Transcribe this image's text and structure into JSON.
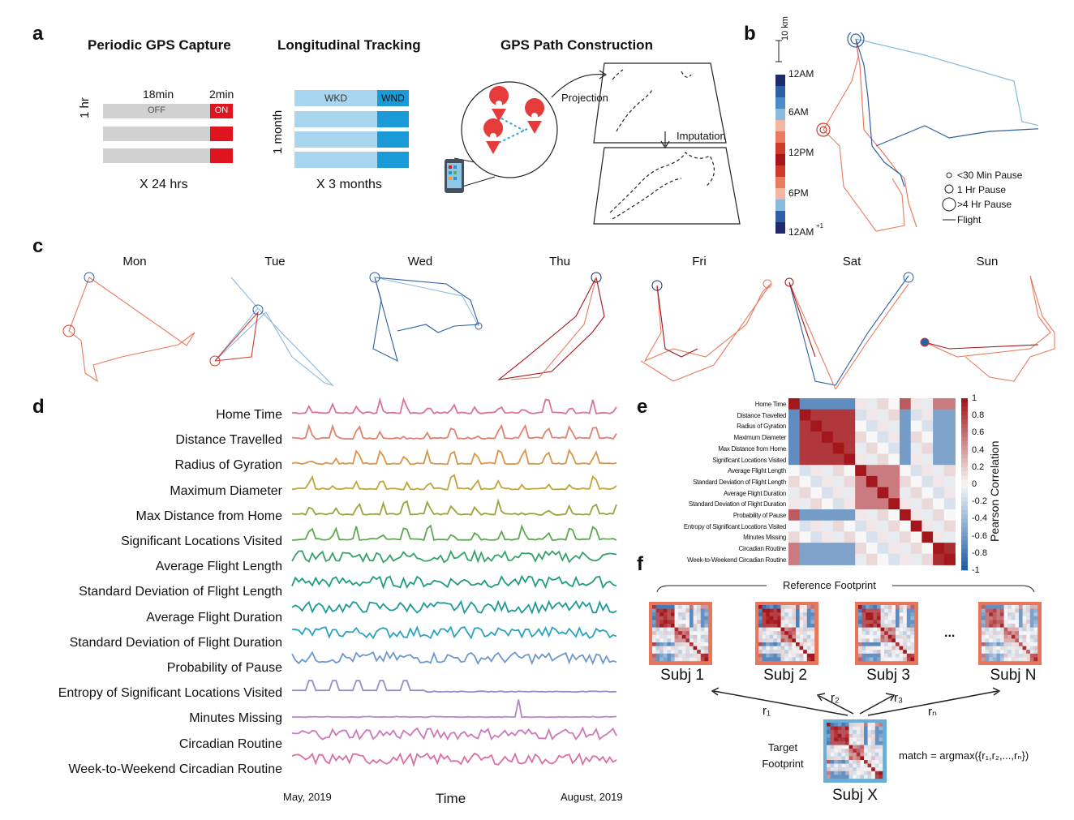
{
  "panel_letters": {
    "a": "a",
    "b": "b",
    "c": "c",
    "d": "d",
    "e": "e",
    "f": "f"
  },
  "panel_a": {
    "capture": {
      "title": "Periodic GPS Capture",
      "off_minutes": "18min",
      "on_minutes": "2min",
      "off_label": "OFF",
      "on_label": "ON",
      "period": "1 hr",
      "repeat": "X 24 hrs",
      "colors": {
        "off": "#d1d1d1",
        "on": "#e0141f"
      }
    },
    "tracking": {
      "title": "Longitudinal Tracking",
      "weekday_label": "WKD",
      "weekend_label": "WND",
      "period": "1 month",
      "repeat": "X 3 months",
      "colors": {
        "weekday": "#a8d6ee",
        "weekend": "#1a9ad6"
      }
    },
    "path": {
      "title": "GPS Path Construction",
      "projection_label": "Projection",
      "imputation_label": "Imputation",
      "icons": [
        "smartphone-icon",
        "location-pin-icon"
      ]
    }
  },
  "panel_b": {
    "scale_label": "10 km",
    "time_ticks": [
      "12AM",
      "6AM",
      "12PM",
      "6PM",
      "12AM"
    ],
    "next_day_mark": "+1",
    "legend": [
      "<30 Min Pause",
      "1 Hr Pause",
      ">4 Hr Pause",
      "Flight"
    ]
  },
  "panel_c": {
    "days": [
      "Mon",
      "Tue",
      "Wed",
      "Thu",
      "Fri",
      "Sat",
      "Sun"
    ]
  },
  "panel_d": {
    "features": [
      {
        "name": "Home Time",
        "color": "#d9739a"
      },
      {
        "name": "Distance Travelled",
        "color": "#e0826c"
      },
      {
        "name": "Radius of Gyration",
        "color": "#d7964a"
      },
      {
        "name": "Maximum Diameter",
        "color": "#bfa53a"
      },
      {
        "name": "Max Distance from Home",
        "color": "#9aa33c"
      },
      {
        "name": "Significant Locations Visited",
        "color": "#5ea950"
      },
      {
        "name": "Average Flight Length",
        "color": "#34a26a"
      },
      {
        "name": "Standard Deviation of Flight Length",
        "color": "#1f9c80"
      },
      {
        "name": "Average Flight Duration",
        "color": "#1f9a9a"
      },
      {
        "name": "Standard  Deviation of Flight Duration",
        "color": "#2aa2c0"
      },
      {
        "name": "Probability of Pause",
        "color": "#6c98cc"
      },
      {
        "name": "Entropy of Significant Locations Visited",
        "color": "#9a8ccc"
      },
      {
        "name": "Minutes Missing",
        "color": "#b587c8"
      },
      {
        "name": "Circadian Routine",
        "color": "#cc78b8"
      },
      {
        "name": "Week-to-Weekend Circadian Routine",
        "color": "#d96fa6"
      }
    ],
    "x_start": "May, 2019",
    "x_end": "August, 2019",
    "x_label": "Time"
  },
  "panel_e": {
    "colorbar_label": "Pearson Correlation",
    "colorbar_ticks": [
      "1",
      "0.8",
      "0.6",
      "0.4",
      "0.2",
      "0",
      "-0.2",
      "-0.4",
      "-0.6",
      "-0.8",
      "-1"
    ],
    "rows": [
      "Home Time",
      "Distance Travelled",
      "Radius of Gyration",
      "Maximum Diameter",
      "Max Distance from Home",
      "Significant Locations Visited",
      "Average Flight Length",
      "Standard Deviation of Flight Length",
      "Average Flight Duration",
      "Standard  Deviation of Flight Duration",
      "Probability of Pause",
      "Entropy of Significant Locations Visited",
      "Minutes Missing",
      "Circadian Routine",
      "Week-to-Weekend Circadian Routine"
    ],
    "colors": {
      "positive": "#a3161c",
      "negative": "#1f5fa7"
    }
  },
  "panel_f": {
    "reference_label": "Reference Footprint",
    "subjects": [
      "Subj 1",
      "Subj 2",
      "Subj 3",
      "Subj N"
    ],
    "ellipsis": "...",
    "target_label": "Target Footprint",
    "target_subject": "Subj X",
    "match_formula": "match = argmax({r₁,r₂,...,rₙ})",
    "r_labels": [
      "r₁",
      "r₂",
      "r₃",
      "rₙ"
    ]
  }
}
